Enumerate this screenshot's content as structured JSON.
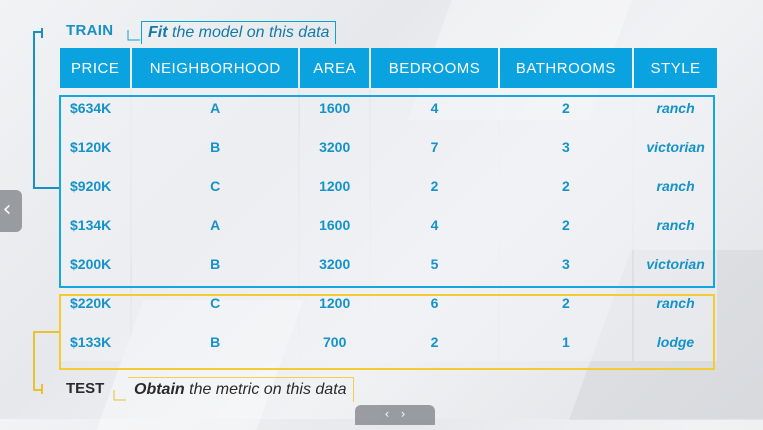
{
  "labels": {
    "train": "TRAIN",
    "train_note_prefix": "Fit",
    "train_note_rest": " the model on this data",
    "test": "TEST",
    "test_note_prefix": "Obtain",
    "test_note_rest": " the metric on this data"
  },
  "table": {
    "headers": [
      "PRICE",
      "NEIGHBORHOOD",
      "AREA",
      "BEDROOMS",
      "BATHROOMS",
      "STYLE"
    ],
    "rows": [
      [
        "$634K",
        "A",
        "1600",
        "4",
        "2",
        "ranch"
      ],
      [
        "$120K",
        "B",
        "3200",
        "7",
        "3",
        "victorian"
      ],
      [
        "$920K",
        "C",
        "1200",
        "2",
        "2",
        "ranch"
      ],
      [
        "$134K",
        "A",
        "1600",
        "4",
        "2",
        "ranch"
      ],
      [
        "$200K",
        "B",
        "3200",
        "5",
        "3",
        "victorian"
      ],
      [
        "$220K",
        "C",
        "1200",
        "6",
        "2",
        "ranch"
      ],
      [
        "$133K",
        "B",
        "700",
        "2",
        "1",
        "lodge"
      ]
    ]
  },
  "controls": {
    "prev_icon": "chevron-left-icon",
    "bottom_icon": "player-controls-icon"
  },
  "colors": {
    "train_accent": "#0aa3e0",
    "test_accent": "#f2cc30",
    "cell_text": "#1593c9"
  }
}
